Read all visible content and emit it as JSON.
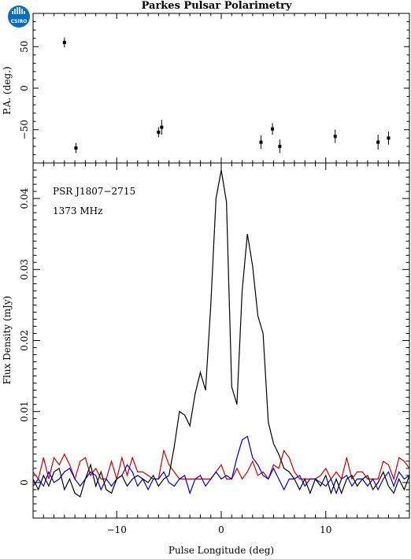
{
  "header": {
    "title": "Parkes Pulsar Polarimetry",
    "logo_text": "CSIRO"
  },
  "chart_data": [
    {
      "type": "scatter",
      "panel": "position-angle",
      "ylabel": "P.A. (deg.)",
      "xlim": [
        -18,
        18
      ],
      "ylim": [
        -90,
        90
      ],
      "yticks": [
        -50,
        0,
        50
      ],
      "points": [
        {
          "x": -15.0,
          "y": 55,
          "err": 6
        },
        {
          "x": -13.9,
          "y": -72,
          "err": 6
        },
        {
          "x": -6.0,
          "y": -53,
          "err": 6
        },
        {
          "x": -5.7,
          "y": -47,
          "err": 9
        },
        {
          "x": 3.8,
          "y": -65,
          "err": 8
        },
        {
          "x": 4.9,
          "y": -49,
          "err": 7
        },
        {
          "x": 5.6,
          "y": -70,
          "err": 8
        },
        {
          "x": 10.9,
          "y": -58,
          "err": 8
        },
        {
          "x": 15.0,
          "y": -65,
          "err": 9
        },
        {
          "x": 16.0,
          "y": -60,
          "err": 8
        }
      ]
    },
    {
      "type": "line",
      "panel": "flux-profile",
      "xlabel": "Pulse Longitude (deg)",
      "ylabel": "Flux Density (mJy)",
      "annotations": [
        "PSR J1807−2715",
        "1373 MHz"
      ],
      "xlim": [
        -18,
        18
      ],
      "ylim": [
        -0.005,
        0.045
      ],
      "xticks": [
        -10,
        0,
        10
      ],
      "xtick_labels": [
        "−10",
        "0",
        "10"
      ],
      "yticks": [
        0,
        0.01,
        0.02,
        0.03,
        0.04
      ],
      "ytick_labels": [
        "0",
        "0.01",
        "0.02",
        "0.03",
        "0.04"
      ],
      "x": [
        -18.0,
        -17.5,
        -17.0,
        -16.5,
        -16.0,
        -15.5,
        -15.0,
        -14.5,
        -14.0,
        -13.5,
        -13.0,
        -12.5,
        -12.0,
        -11.5,
        -11.0,
        -10.5,
        -10.0,
        -9.5,
        -9.0,
        -8.5,
        -8.0,
        -7.5,
        -7.0,
        -6.5,
        -6.0,
        -5.5,
        -5.0,
        -4.5,
        -4.0,
        -3.5,
        -3.0,
        -2.5,
        -2.0,
        -1.5,
        -1.0,
        -0.5,
        0.0,
        0.5,
        1.0,
        1.5,
        2.0,
        2.5,
        3.0,
        3.5,
        4.0,
        4.5,
        5.0,
        5.5,
        6.0,
        6.5,
        7.0,
        7.5,
        8.0,
        8.5,
        9.0,
        9.5,
        10.0,
        10.5,
        11.0,
        11.5,
        12.0,
        12.5,
        13.0,
        13.5,
        14.0,
        14.5,
        15.0,
        15.5,
        16.0,
        16.5,
        17.0,
        17.5,
        18.0
      ],
      "series": [
        {
          "name": "",
          "color": "#000000",
          "values": [
            0.0005,
            -0.001,
            0.001,
            -0.0005,
            0.0015,
            0.002,
            -0.001,
            0.0005,
            -0.0015,
            -0.002,
            0.0005,
            0.0025,
            -0.0005,
            0.0015,
            -0.001,
            -0.0015,
            0.0005,
            0.001,
            -0.0005,
            0.0005,
            0.001,
            0.0005,
            0.0,
            0.001,
            -0.0005,
            0.0005,
            0.001,
            0.005,
            0.01,
            0.0095,
            0.008,
            0.0125,
            0.0155,
            0.013,
            0.025,
            0.04,
            0.044,
            0.0395,
            0.0135,
            0.011,
            0.027,
            0.035,
            0.0305,
            0.0235,
            0.021,
            0.0085,
            0.0055,
            0.004,
            0.002,
            0.0015,
            0.0005,
            -0.001,
            0.0005,
            -0.0015,
            0.0005,
            -0.0005,
            0.001,
            -0.0015,
            0.0005,
            -0.0015,
            0.0005,
            0.001,
            -0.0005,
            0.0005,
            0.001,
            -0.001,
            0.0,
            0.0015,
            -0.0005,
            -0.0015,
            0.0005,
            -0.001,
            0.001
          ]
        },
        {
          "name": "",
          "color": "#cc0000",
          "values": [
            0.0015,
            0.0005,
            0.0035,
            0.0005,
            0.0035,
            0.0025,
            0.004,
            0.0025,
            0.0005,
            0.003,
            0.0035,
            0.001,
            0.002,
            0.0005,
            0.0005,
            0.003,
            0.0005,
            0.0035,
            0.001,
            0.0035,
            0.0015,
            0.0015,
            0.001,
            0.0005,
            0.0005,
            0.0045,
            0.0025,
            0.0015,
            0.0005,
            0.0005,
            0.0005,
            0.0005,
            0.0005,
            0.0005,
            0.0005,
            0.0015,
            0.0025,
            0.0005,
            0.0005,
            0.002,
            0.0005,
            0.0015,
            0.003,
            0.001,
            0.0015,
            0.0005,
            0.0025,
            0.002,
            0.0045,
            0.0035,
            0.0015,
            0.0005,
            0.0005,
            0.0005,
            0.0005,
            0.001,
            0.002,
            0.0005,
            0.0015,
            0.0005,
            0.0035,
            0.0005,
            0.0015,
            0.0015,
            0.0005,
            0.0005,
            0.0005,
            0.003,
            0.0025,
            0.0005,
            0.0035,
            0.003,
            0.002
          ]
        },
        {
          "name": "",
          "color": "#0000cc",
          "values": [
            -0.0005,
            0.0005,
            -0.0005,
            0.0015,
            0.0,
            0.0005,
            0.0015,
            0.002,
            0.0005,
            -0.0005,
            0.0005,
            0.0015,
            0.001,
            -0.001,
            0.0005,
            -0.0005,
            0.0005,
            0.001,
            0.0025,
            0.0015,
            -0.0005,
            0.0005,
            -0.001,
            0.0005,
            0.0005,
            0.0015,
            0.0,
            -0.0005,
            0.0005,
            0.001,
            -0.0015,
            0.0005,
            0.001,
            -0.0005,
            0.0005,
            0.0015,
            0.0005,
            0.001,
            0.0005,
            0.0035,
            0.006,
            0.0065,
            0.0035,
            0.0025,
            0.001,
            0.0005,
            0.002,
            0.0005,
            -0.001,
            0.0005,
            0.0005,
            0.001,
            -0.0005,
            0.0005,
            0.0005,
            0.0,
            -0.0005,
            0.0005,
            -0.0015,
            0.0005,
            0.001,
            -0.0005,
            0.0005,
            0.0005,
            -0.0005,
            0.0005,
            -0.001,
            0.0005,
            0.0015,
            -0.0005,
            0.0015,
            0.0005,
            0.001
          ]
        }
      ]
    }
  ]
}
